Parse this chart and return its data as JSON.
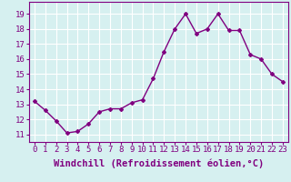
{
  "x": [
    0,
    1,
    2,
    3,
    4,
    5,
    6,
    7,
    8,
    9,
    10,
    11,
    12,
    13,
    14,
    15,
    16,
    17,
    18,
    19,
    20,
    21,
    22,
    23
  ],
  "y": [
    13.2,
    12.6,
    11.9,
    11.1,
    11.2,
    11.7,
    12.5,
    12.7,
    12.7,
    13.1,
    13.3,
    14.7,
    16.5,
    18.0,
    19.0,
    17.7,
    18.0,
    19.0,
    17.9,
    17.9,
    16.3,
    16.0,
    15.0,
    14.5
  ],
  "line_color": "#800080",
  "marker": "D",
  "marker_size": 2,
  "bg_color": "#d6f0f0",
  "grid_color": "#ffffff",
  "xlabel": "Windchill (Refroidissement éolien,°C)",
  "ylim": [
    10.5,
    19.8
  ],
  "xlim": [
    -0.5,
    23.5
  ],
  "yticks": [
    11,
    12,
    13,
    14,
    15,
    16,
    17,
    18,
    19
  ],
  "xticks": [
    0,
    1,
    2,
    3,
    4,
    5,
    6,
    7,
    8,
    9,
    10,
    11,
    12,
    13,
    14,
    15,
    16,
    17,
    18,
    19,
    20,
    21,
    22,
    23
  ],
  "tick_label_color": "#800080",
  "tick_label_size": 6.5,
  "xlabel_size": 7.5,
  "linewidth": 1.0
}
